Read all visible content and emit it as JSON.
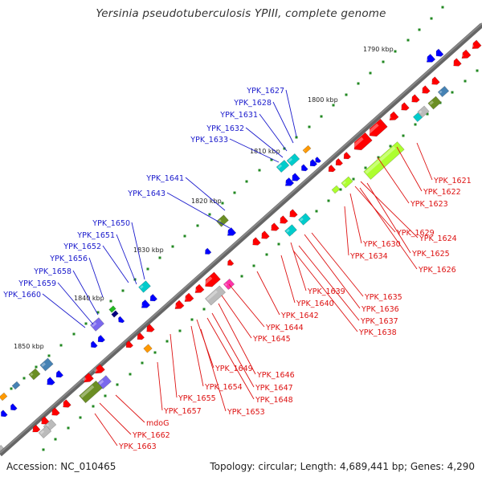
{
  "title": "Yersinia pseudotuberculosis YPIII, complete genome",
  "footer": {
    "accession": "Accession: NC_010465",
    "summary": "Topology: circular; Length: 4,689,441 bp; Genes: 4,290"
  },
  "ruler": [
    "1790 kbp",
    "1800 kbp",
    "1810 kbp",
    "1820 kbp",
    "1830 kbp",
    "1840 kbp",
    "1850 kbp"
  ],
  "forward_labels": [
    "YPK_1627",
    "YPK_1628",
    "YPK_1631",
    "YPK_1632",
    "YPK_1633",
    "YPK_1641",
    "YPK_1643",
    "YPK_1650",
    "YPK_1651",
    "YPK_1652",
    "YPK_1656",
    "YPK_1658",
    "YPK_1659",
    "YPK_1660"
  ],
  "reverse_labels": [
    "YPK_1621",
    "YPK_1622",
    "YPK_1623",
    "YPK_1629",
    "YPK_1624",
    "YPK_1630",
    "YPK_1625",
    "YPK_1634",
    "YPK_1626",
    "YPK_1639",
    "YPK_1635",
    "YPK_1636",
    "YPK_1640",
    "YPK_1637",
    "YPK_1642",
    "YPK_1638",
    "YPK_1644",
    "YPK_1645",
    "YPK_1646",
    "YPK_1649",
    "YPK_1647",
    "YPK_1654",
    "YPK_1648",
    "YPK_1655",
    "YPK_1653",
    "YPK_1657",
    "mdoG",
    "YPK_1662",
    "YPK_1663"
  ],
  "colors": {
    "backbone": "#888888",
    "forward_label": "#1a1acc",
    "reverse_label": "#dd1111",
    "forward_cds": "#0000ff",
    "reverse_cds": "#ff0000",
    "rna": "#00cccc",
    "misc": "#ff9900",
    "special": "#6b8e23",
    "pseudo": "#7b68ee",
    "light_green": "#adff2f",
    "magenta": "#ff33aa",
    "grey": "#bbbbbb",
    "tick": "#228822",
    "steel": "#4682b4"
  }
}
